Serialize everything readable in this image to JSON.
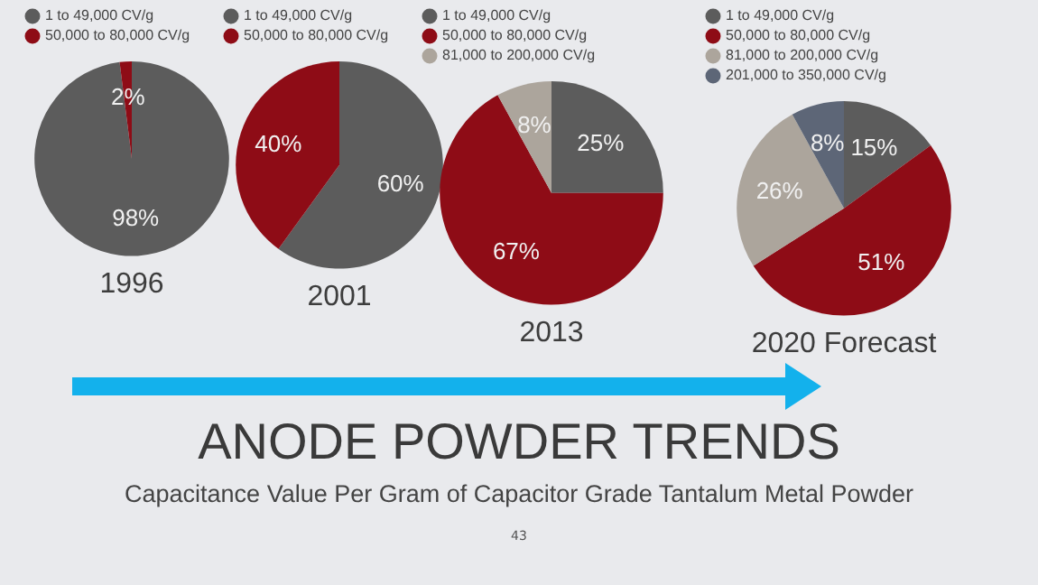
{
  "chart_data": [
    {
      "type": "pie",
      "title": "1996",
      "categories": [
        "1 to 49,000 CV/g",
        "50,000 to 80,000 CV/g"
      ],
      "values": [
        98,
        2
      ],
      "colors": [
        "#5c5c5c",
        "#8e0c16"
      ],
      "value_labels": [
        "98%",
        "2%"
      ],
      "legend": "top left"
    },
    {
      "type": "pie",
      "title": "2001",
      "categories": [
        "1 to 49,000 CV/g",
        "50,000 to 80,000 CV/g"
      ],
      "values": [
        60,
        40
      ],
      "colors": [
        "#5c5c5c",
        "#8e0c16"
      ],
      "value_labels": [
        "60%",
        "40%"
      ],
      "legend": "top left"
    },
    {
      "type": "pie",
      "title": "2013",
      "categories": [
        "1 to 49,000 CV/g",
        "50,000 to 80,000 CV/g",
        "81,000 to 200,000 CV/g"
      ],
      "values": [
        25,
        67,
        8
      ],
      "colors": [
        "#5c5c5c",
        "#8e0c16",
        "#aca59c"
      ],
      "value_labels": [
        "25%",
        "67%",
        "8%"
      ],
      "legend": "top left"
    },
    {
      "type": "pie",
      "title": "2020 Forecast",
      "categories": [
        "1 to 49,000 CV/g",
        "50,000 to 80,000 CV/g",
        "81,000 to 200,000 CV/g",
        "201,000 to 350,000 CV/g"
      ],
      "values": [
        15,
        51,
        26,
        8
      ],
      "colors": [
        "#5c5c5c",
        "#8e0c16",
        "#aca59c",
        "#5d6677"
      ],
      "value_labels": [
        "15%",
        "51%",
        "26%",
        "8%"
      ],
      "legend": "top left"
    },
    {
      "type": "other",
      "title": "ANODE POWDER TRENDS",
      "subtitle": "Capacitance Value Per Gram of Capacitor Grade Tantalum Metal Powder",
      "annotations": [
        "43"
      ]
    }
  ]
}
